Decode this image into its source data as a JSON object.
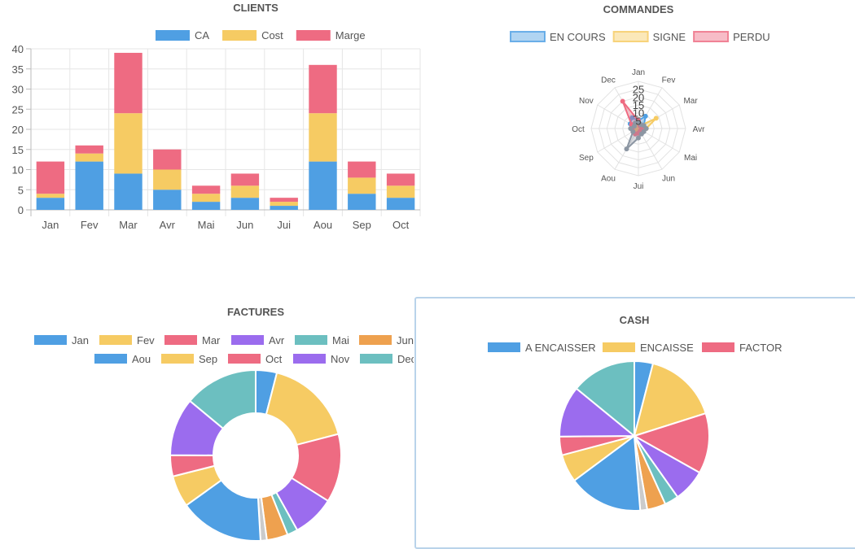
{
  "chart_data": [
    {
      "type": "bar",
      "stacked": true,
      "title": "CLIENTS",
      "categories": [
        "Jan",
        "Fev",
        "Mar",
        "Avr",
        "Mai",
        "Jun",
        "Jui",
        "Aou",
        "Sep",
        "Oct"
      ],
      "series": [
        {
          "name": "CA",
          "color": "#4F9FE3",
          "values": [
            3,
            12,
            9,
            5,
            2,
            3,
            1,
            12,
            4,
            3
          ]
        },
        {
          "name": "Cost",
          "color": "#F6CB63",
          "values": [
            1,
            2,
            15,
            5,
            2,
            3,
            1,
            12,
            4,
            3
          ]
        },
        {
          "name": "Marge",
          "color": "#EE6B82",
          "values": [
            8,
            2,
            15,
            5,
            2,
            3,
            1,
            12,
            4,
            3
          ]
        }
      ],
      "ylim": [
        0,
        40
      ],
      "yticks": [
        0,
        5,
        10,
        15,
        20,
        25,
        30,
        35,
        40
      ],
      "legend": "top",
      "grid": true
    },
    {
      "type": "radar",
      "title": "COMMANDES",
      "categories": [
        "Jan",
        "Fev",
        "Mar",
        "Avr",
        "Mai",
        "Jun",
        "Jui",
        "Aou",
        "Sep",
        "Oct",
        "Nov",
        "Dec"
      ],
      "rticks": [
        5,
        10,
        15,
        20,
        25
      ],
      "rmax": 30,
      "series": [
        {
          "name": "EN COURS",
          "color": "#4F9FE3",
          "values": [
            5,
            9,
            4,
            3,
            2,
            2,
            3,
            4,
            3,
            4,
            6,
            8
          ]
        },
        {
          "name": "SIGNE",
          "color": "#F6CB63",
          "values": [
            2,
            2,
            13,
            5,
            3,
            2,
            1,
            2,
            1,
            1,
            2,
            3
          ]
        },
        {
          "name": "PERDU",
          "color": "#EE6B82",
          "values": [
            5,
            2,
            3,
            2,
            2,
            2,
            3,
            4,
            4,
            4,
            5,
            20
          ]
        },
        {
          "name": "",
          "color": "#8C96A3",
          "values": [
            4,
            3,
            4,
            5,
            4,
            4,
            6,
            15,
            4,
            5,
            3,
            4
          ]
        }
      ],
      "legend": "top"
    },
    {
      "type": "pie",
      "donut": true,
      "title": "FACTURES",
      "legend": "top",
      "labels": [
        "Jan",
        "Fev",
        "Mar",
        "Avr",
        "Mai",
        "Jun",
        "Aou",
        "Sep",
        "Oct",
        "Nov",
        "Dec"
      ],
      "legend_colors": [
        "#4F9FE3",
        "#F6CB63",
        "#EE6B82",
        "#9B6CEE",
        "#6CBFC0",
        "#EEA14F",
        "#4F9FE3",
        "#F6CB63",
        "#EE6B82",
        "#9B6CEE",
        "#6CBFC0"
      ],
      "slices": [
        {
          "label": "Jan",
          "value": 4,
          "color": "#4F9FE3"
        },
        {
          "label": "Fev",
          "value": 17,
          "color": "#F6CB63"
        },
        {
          "label": "Mar",
          "value": 13,
          "color": "#EE6B82"
        },
        {
          "label": "Avr",
          "value": 8,
          "color": "#9B6CEE"
        },
        {
          "label": "Mai",
          "value": 2,
          "color": "#6CBFC0"
        },
        {
          "label": "Jun",
          "value": 4,
          "color": "#EEA14F"
        },
        {
          "label": "",
          "value": 1.2,
          "color": "#CBCBCB"
        },
        {
          "label": "Aou",
          "value": 16,
          "color": "#4F9FE3"
        },
        {
          "label": "Sep",
          "value": 6,
          "color": "#F6CB63"
        },
        {
          "label": "Oct",
          "value": 4,
          "color": "#EE6B82"
        },
        {
          "label": "Nov",
          "value": 11,
          "color": "#9B6CEE"
        },
        {
          "label": "Dec",
          "value": 14,
          "color": "#6CBFC0"
        }
      ]
    },
    {
      "type": "pie",
      "title": "CASH",
      "legend": "top",
      "labels": [
        "A ENCAISSER",
        "ENCAISSE",
        "FACTOR"
      ],
      "legend_colors": [
        "#4F9FE3",
        "#F6CB63",
        "#EE6B82"
      ],
      "slices": [
        {
          "value": 4,
          "color": "#4F9FE3"
        },
        {
          "value": 16,
          "color": "#F6CB63"
        },
        {
          "value": 13,
          "color": "#EE6B82"
        },
        {
          "value": 7,
          "color": "#9B6CEE"
        },
        {
          "value": 3,
          "color": "#6CBFC0"
        },
        {
          "value": 4,
          "color": "#EEA14F"
        },
        {
          "value": 1.5,
          "color": "#CBCBCB"
        },
        {
          "value": 16,
          "color": "#4F9FE3"
        },
        {
          "value": 6,
          "color": "#F6CB63"
        },
        {
          "value": 4,
          "color": "#EE6B82"
        },
        {
          "value": 11,
          "color": "#9B6CEE"
        },
        {
          "value": 14,
          "color": "#6CBFC0"
        }
      ]
    }
  ]
}
